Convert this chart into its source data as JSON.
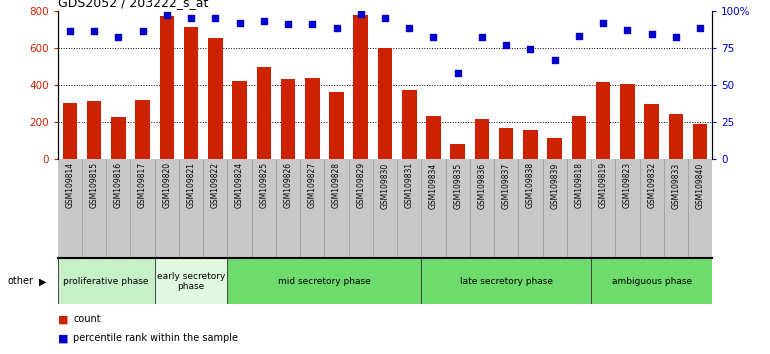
{
  "title": "GDS2052 / 203222_s_at",
  "samples": [
    "GSM109814",
    "GSM109815",
    "GSM109816",
    "GSM109817",
    "GSM109820",
    "GSM109821",
    "GSM109822",
    "GSM109824",
    "GSM109825",
    "GSM109826",
    "GSM109827",
    "GSM109828",
    "GSM109829",
    "GSM109830",
    "GSM109831",
    "GSM109834",
    "GSM109835",
    "GSM109836",
    "GSM109837",
    "GSM109838",
    "GSM109839",
    "GSM109818",
    "GSM109819",
    "GSM109823",
    "GSM109832",
    "GSM109833",
    "GSM109840"
  ],
  "counts": [
    305,
    315,
    230,
    320,
    770,
    710,
    655,
    420,
    495,
    430,
    435,
    360,
    775,
    600,
    375,
    235,
    80,
    215,
    170,
    155,
    115,
    235,
    415,
    405,
    295,
    245,
    190
  ],
  "percentile": [
    86,
    86,
    82,
    86,
    97,
    95,
    95,
    92,
    93,
    91,
    91,
    88,
    98,
    95,
    88,
    82,
    58,
    82,
    77,
    74,
    67,
    83,
    92,
    87,
    84,
    82,
    88
  ],
  "phases": [
    {
      "label": "proliferative phase",
      "start": 0,
      "end": 4,
      "color": "#c8f0c8"
    },
    {
      "label": "early secretory\nphase",
      "start": 4,
      "end": 7,
      "color": "#e0f8e0"
    },
    {
      "label": "mid secretory phase",
      "start": 7,
      "end": 15,
      "color": "#6ddc6d"
    },
    {
      "label": "late secretory phase",
      "start": 15,
      "end": 22,
      "color": "#6ddc6d"
    },
    {
      "label": "ambiguous phase",
      "start": 22,
      "end": 27,
      "color": "#6ddc6d"
    }
  ],
  "left_ylim": [
    0,
    800
  ],
  "left_yticks": [
    0,
    200,
    400,
    600,
    800
  ],
  "right_ylim": [
    0,
    100
  ],
  "right_yticks": [
    0,
    25,
    50,
    75,
    100
  ],
  "bar_color": "#cc2200",
  "dot_color": "#0000cc",
  "tick_label_bg": "#c8c8c8",
  "left_tick_color": "#cc2200",
  "right_tick_color": "#0000cc",
  "grid_color": "black",
  "phase_border_color": "#444444",
  "legend_bar_color": "#cc2200",
  "legend_dot_color": "#0000cc"
}
